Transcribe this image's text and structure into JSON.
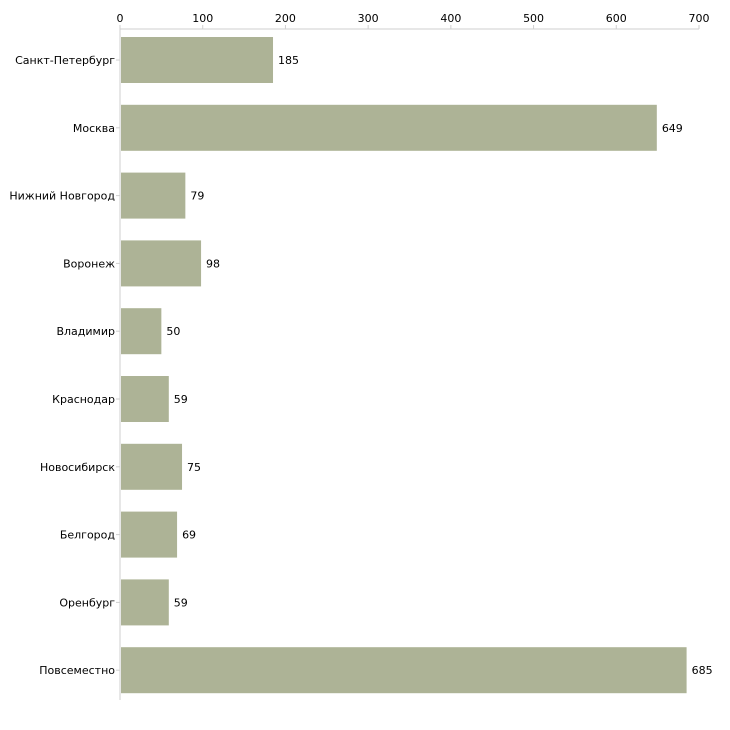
{
  "chart_data": {
    "type": "bar",
    "orientation": "horizontal",
    "title": "",
    "xlabel": "",
    "ylabel": "",
    "xlim": [
      0,
      700
    ],
    "ticks": [
      0,
      100,
      200,
      300,
      400,
      500,
      600,
      700
    ],
    "tick_labels": [
      "0",
      "100",
      "200",
      "300",
      "400",
      "500",
      "600",
      "700"
    ],
    "x_axis_position": "top",
    "grid": false,
    "bar_color": "#adb396",
    "categories": [
      "Санкт-Петербург",
      "Москва",
      "Нижний Новгород",
      "Воронеж",
      "Владимир",
      "Краснодар",
      "Новосибирск",
      "Белгород",
      "Оренбург",
      "Повсеместно"
    ],
    "values": [
      185,
      649,
      79,
      98,
      50,
      59,
      75,
      69,
      59,
      685
    ],
    "value_labels": [
      "185",
      "649",
      "79",
      "98",
      "50",
      "59",
      "75",
      "69",
      "59",
      "685"
    ]
  }
}
